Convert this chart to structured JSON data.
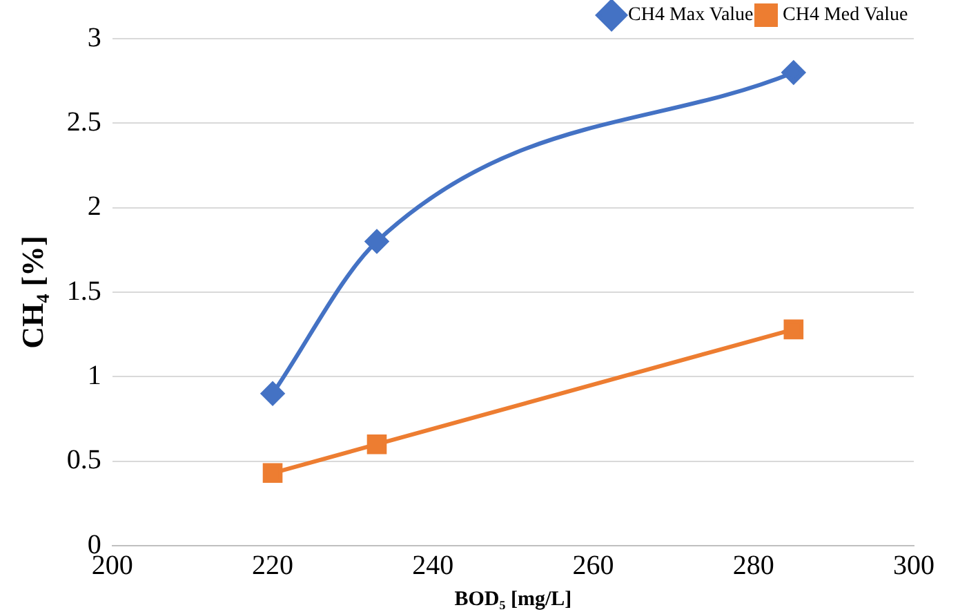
{
  "chart_data": {
    "type": "line",
    "xlabel": "BOD₅ [mg/L]",
    "ylabel": "CH₄ [%]",
    "xlim": [
      200,
      300
    ],
    "xticks": [
      200,
      220,
      240,
      260,
      280,
      300
    ],
    "ylim": [
      0,
      3
    ],
    "yticks": [
      0,
      0.5,
      1,
      1.5,
      2,
      2.5,
      3
    ],
    "grid": "y",
    "legend": "top right",
    "series": [
      {
        "name": "CH4 Max Value",
        "color": "#4472c4",
        "marker": "diamond",
        "x": [
          220,
          233,
          285
        ],
        "values": [
          0.9,
          1.8,
          2.8
        ]
      },
      {
        "name": "CH4 Med Value",
        "color": "#ed7d31",
        "marker": "square",
        "x": [
          220,
          233,
          285
        ],
        "values": [
          0.43,
          0.6,
          1.28
        ]
      }
    ]
  }
}
